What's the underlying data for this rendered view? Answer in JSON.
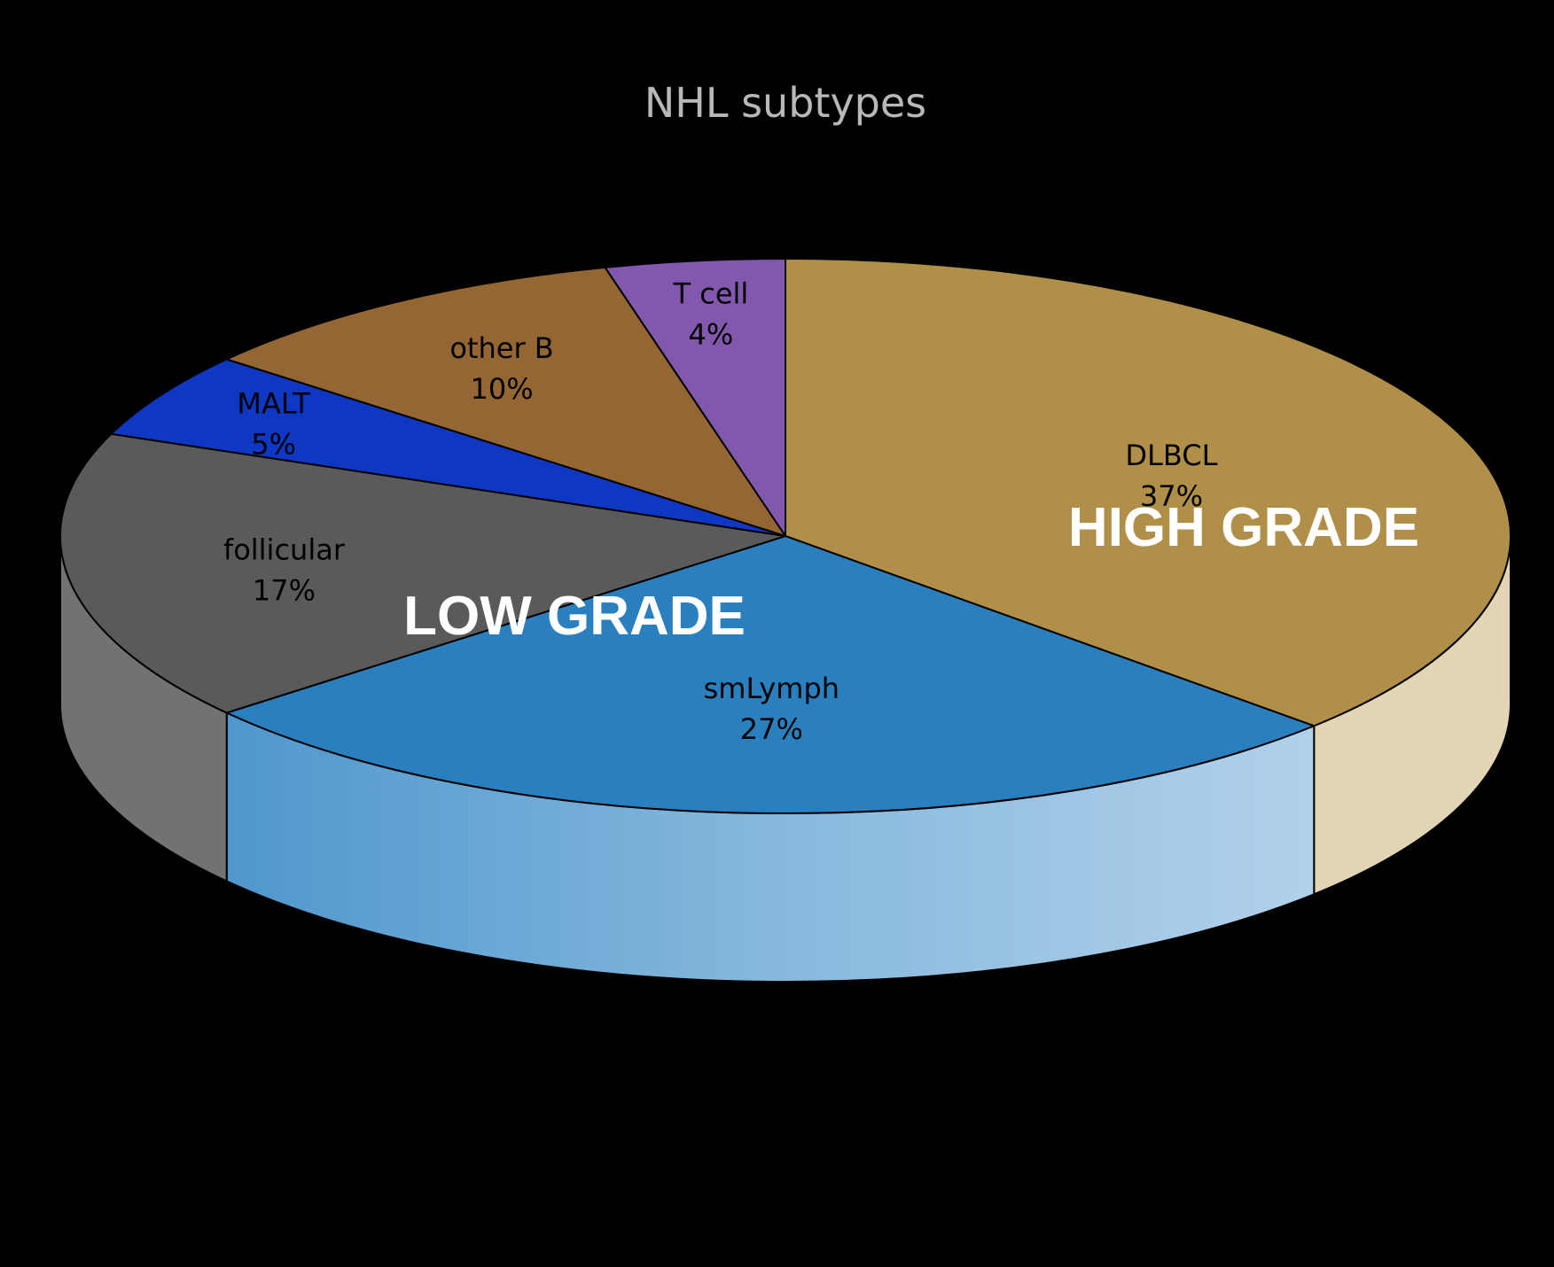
{
  "chart_data": {
    "type": "pie",
    "title": "NHL subtypes",
    "style": "3d",
    "slices": [
      {
        "name": "DLBCL",
        "value": 37,
        "label": "37%",
        "color": "#B08F48",
        "side_color": "#E3D4B4"
      },
      {
        "name": "smLymph",
        "value": 27,
        "label": "27%",
        "color": "#2A7FBF",
        "side_color": "#6FAAD8"
      },
      {
        "name": "follicular",
        "value": 17,
        "label": "17%",
        "color": "#5A5A5A",
        "side_color": "#727272"
      },
      {
        "name": "MALT",
        "value": 5,
        "label": "5%",
        "color": "#0E38C4",
        "side_color": "#0A2A96"
      },
      {
        "name": "other B",
        "value": 10,
        "label": "10%",
        "color": "#936634",
        "side_color": "#7A5429"
      },
      {
        "name": "T cell",
        "value": 4,
        "label": "4%",
        "color": "#8257AE",
        "side_color": "#6B4690"
      }
    ],
    "annotations": [
      {
        "text": "HIGH GRADE"
      },
      {
        "text": "LOW GRADE"
      }
    ],
    "legend": "none",
    "background": "#000000"
  }
}
